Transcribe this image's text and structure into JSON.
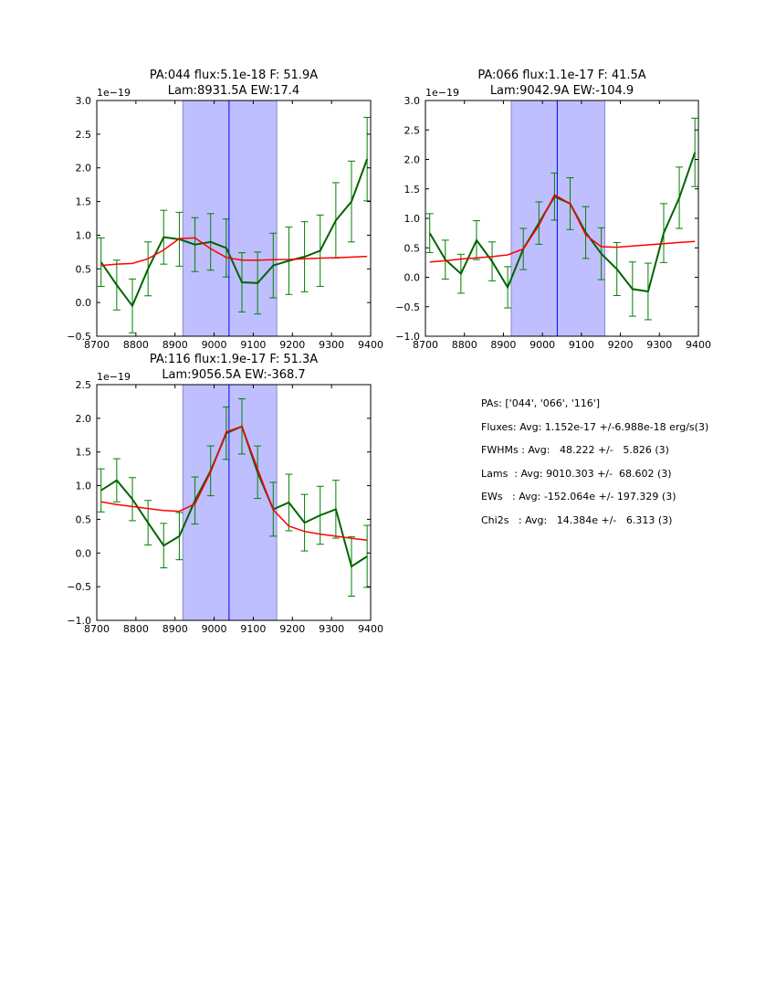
{
  "chart_data": [
    {
      "type": "line",
      "title": [
        "PA:044 flux:5.1e-18 F: 51.9A",
        "Lam:8931.5A EW:17.4"
      ],
      "offset_label": "1e−19",
      "xlim": [
        8700,
        9400
      ],
      "ylim": [
        -0.5,
        3.0
      ],
      "xticks": [
        8700,
        8800,
        8900,
        9000,
        9100,
        9200,
        9300,
        9400
      ],
      "yticks": [
        -0.5,
        0.0,
        0.5,
        1.0,
        1.5,
        2.0,
        2.5,
        3.0
      ],
      "band": [
        8920,
        9160
      ],
      "center_line": 9038,
      "x": [
        8711,
        8751,
        8791,
        8831,
        8871,
        8911,
        8951,
        8991,
        9031,
        9071,
        9111,
        9151,
        9191,
        9231,
        9271,
        9311,
        9351,
        9391
      ],
      "series": [
        {
          "name": "data",
          "color": "#006400",
          "values": [
            0.6,
            0.26,
            -0.05,
            0.5,
            0.97,
            0.94,
            0.86,
            0.9,
            0.81,
            0.3,
            0.29,
            0.55,
            0.62,
            0.68,
            0.77,
            1.22,
            1.5,
            2.13
          ],
          "errors": [
            0.36,
            0.37,
            0.4,
            0.4,
            0.4,
            0.4,
            0.4,
            0.42,
            0.43,
            0.44,
            0.46,
            0.48,
            0.5,
            0.52,
            0.53,
            0.56,
            0.6,
            0.62
          ]
        },
        {
          "name": "fit",
          "color": "#ff0000",
          "values": [
            0.55,
            0.57,
            0.58,
            0.65,
            0.78,
            0.95,
            0.96,
            0.8,
            0.67,
            0.63,
            0.63,
            0.635,
            0.64,
            0.65,
            0.66,
            0.665,
            0.675,
            0.685
          ]
        }
      ]
    },
    {
      "type": "line",
      "title": [
        "PA:066 flux:1.1e-17 F: 41.5A",
        "Lam:9042.9A EW:-104.9"
      ],
      "offset_label": "1e−19",
      "xlim": [
        8700,
        9400
      ],
      "ylim": [
        -1.0,
        3.0
      ],
      "xticks": [
        8700,
        8800,
        8900,
        9000,
        9100,
        9200,
        9300,
        9400
      ],
      "yticks": [
        -1.0,
        -0.5,
        0.0,
        0.5,
        1.0,
        1.5,
        2.0,
        2.5,
        3.0
      ],
      "band": [
        8920,
        9160
      ],
      "center_line": 9038,
      "x": [
        8711,
        8751,
        8791,
        8831,
        8871,
        8911,
        8951,
        8991,
        9031,
        9071,
        9111,
        9151,
        9191,
        9231,
        9271,
        9311,
        9351,
        9391
      ],
      "series": [
        {
          "name": "data",
          "color": "#006400",
          "values": [
            0.75,
            0.3,
            0.06,
            0.63,
            0.27,
            -0.17,
            0.48,
            0.92,
            1.37,
            1.25,
            0.76,
            0.4,
            0.14,
            -0.2,
            -0.24,
            0.75,
            1.35,
            2.12
          ],
          "errors": [
            0.33,
            0.33,
            0.33,
            0.33,
            0.33,
            0.35,
            0.35,
            0.36,
            0.4,
            0.44,
            0.44,
            0.44,
            0.45,
            0.46,
            0.48,
            0.5,
            0.52,
            0.58
          ]
        },
        {
          "name": "fit",
          "color": "#ff0000",
          "values": [
            0.26,
            0.28,
            0.31,
            0.33,
            0.35,
            0.38,
            0.48,
            0.88,
            1.4,
            1.25,
            0.72,
            0.52,
            0.51,
            0.53,
            0.55,
            0.57,
            0.59,
            0.61
          ]
        }
      ]
    },
    {
      "type": "line",
      "title": [
        "PA:116 flux:1.9e-17 F: 51.3A",
        "Lam:9056.5A EW:-368.7"
      ],
      "offset_label": "1e−19",
      "xlim": [
        8700,
        9400
      ],
      "ylim": [
        -1.0,
        2.5
      ],
      "xticks": [
        8700,
        8800,
        8900,
        9000,
        9100,
        9200,
        9300,
        9400
      ],
      "yticks": [
        -1.0,
        -0.5,
        0.0,
        0.5,
        1.0,
        1.5,
        2.0,
        2.5
      ],
      "band": [
        8920,
        9160
      ],
      "center_line": 9038,
      "x": [
        8711,
        8751,
        8791,
        8831,
        8871,
        8911,
        8951,
        8991,
        9031,
        9071,
        9111,
        9151,
        9191,
        9231,
        9271,
        9311,
        9351,
        9391
      ],
      "series": [
        {
          "name": "data",
          "color": "#006400",
          "values": [
            0.93,
            1.08,
            0.8,
            0.45,
            0.11,
            0.25,
            0.78,
            1.22,
            1.78,
            1.88,
            1.2,
            0.65,
            0.75,
            0.45,
            0.56,
            0.65,
            -0.2,
            -0.05
          ],
          "errors": [
            0.32,
            0.32,
            0.32,
            0.33,
            0.33,
            0.35,
            0.35,
            0.37,
            0.39,
            0.41,
            0.39,
            0.4,
            0.42,
            0.42,
            0.43,
            0.43,
            0.44,
            0.46
          ]
        },
        {
          "name": "fit",
          "color": "#ff0000",
          "values": [
            0.76,
            0.72,
            0.69,
            0.66,
            0.63,
            0.62,
            0.73,
            1.2,
            1.8,
            1.88,
            1.25,
            0.64,
            0.4,
            0.32,
            0.28,
            0.25,
            0.22,
            0.19
          ]
        }
      ]
    }
  ],
  "stats": [
    "PAs: ['044', '066', '116']",
    "Fluxes: Avg: 1.152e-17 +/-6.988e-18 erg/s(3)",
    "FWHMs : Avg:   48.222 +/-   5.826 (3)",
    "Lams  : Avg: 9010.303 +/-  68.602 (3)",
    "EWs   : Avg: -152.064e +/- 197.329 (3)",
    "Chi2s   : Avg:   14.384e +/-   6.313 (3)"
  ],
  "colors": {
    "band": "#bfbfff",
    "band_edge": "#8888cc",
    "center_line": "#0000ff"
  }
}
